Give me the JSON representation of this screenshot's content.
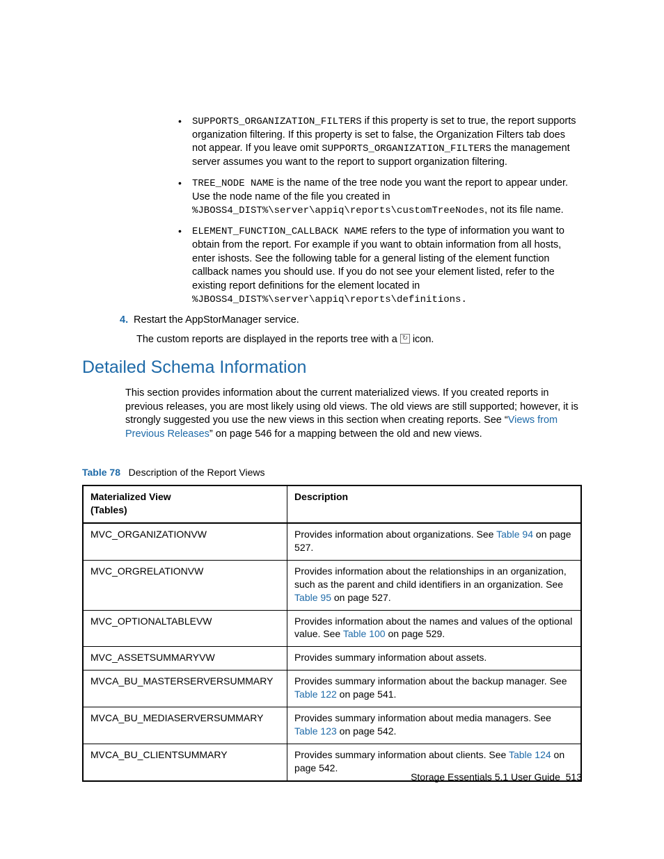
{
  "bullets": [
    {
      "runs": [
        {
          "t": "mono",
          "v": "SUPPORTS_ORGANIZATION_FILTERS"
        },
        {
          "t": "text",
          "v": " if this property is set to true, the report supports organization filtering. If this property is set to false, the Organization Filters tab does not appear. If you leave omit "
        },
        {
          "t": "mono",
          "v": "SUPPORTS_ORGANIZATION_FILTERS"
        },
        {
          "t": "text",
          "v": " the management server assumes you want to the report to support organization filtering."
        }
      ]
    },
    {
      "runs": [
        {
          "t": "mono",
          "v": "TREE_NODE NAME"
        },
        {
          "t": "text",
          "v": " is the name of the tree node you want the report to appear under. Use the node name of the file you created in "
        },
        {
          "t": "monoblock",
          "v": "%JBOSS4_DIST%\\server\\appiq\\reports\\customTreeNodes"
        },
        {
          "t": "text",
          "v": ", not its file name."
        }
      ]
    },
    {
      "runs": [
        {
          "t": "mono",
          "v": "ELEMENT_FUNCTION_CALLBACK NAME"
        },
        {
          "t": "text",
          "v": " refers to the type of information you want to obtain from the report. For example if you want to obtain information from all hosts, enter ishosts. See the following table for a general listing of the element function callback names you should use. If you do not see your element listed, refer to the existing report definitions for the element located in "
        },
        {
          "t": "monoblock",
          "v": "%JBOSS4_DIST%\\server\\appiq\\reports\\definitions."
        }
      ]
    }
  ],
  "step4": {
    "num": "4.",
    "text": "Restart the AppStorManager service."
  },
  "afterStep": {
    "pre": "The custom reports are displayed in the reports tree with a ",
    "post": " icon."
  },
  "heading": "Detailed Schema Information",
  "intro": {
    "runs": [
      {
        "t": "text",
        "v": "This section provides information about the current materialized views. If you created reports in previous releases, you are most likely using old views. The old views are still supported; however, it is strongly suggested you use the new views in this section when creating reports. See “"
      },
      {
        "t": "link",
        "v": "Views from Previous Releases"
      },
      {
        "t": "text",
        "v": "” on page 546 for a mapping between the old and new views."
      }
    ]
  },
  "tableCaption": {
    "label": "Table 78",
    "title": "Description of the Report Views"
  },
  "tableHeaders": [
    "Materialized View (Tables)",
    "Description"
  ],
  "rows": [
    {
      "view": "MVC_ORGANIZATIONVW",
      "desc": [
        {
          "t": "text",
          "v": "Provides information about organizations. See "
        },
        {
          "t": "link",
          "v": "Table 94"
        },
        {
          "t": "text",
          "v": " on page 527."
        }
      ]
    },
    {
      "view": "MVC_ORGRELATIONVW",
      "desc": [
        {
          "t": "text",
          "v": "Provides information about the relationships in an organization, such as the parent and child identifiers in an organization. See "
        },
        {
          "t": "link",
          "v": "Table 95"
        },
        {
          "t": "text",
          "v": " on page 527."
        }
      ]
    },
    {
      "view": "MVC_OPTIONALTABLEVW",
      "desc": [
        {
          "t": "text",
          "v": "Provides information about the names and values of the optional value. See "
        },
        {
          "t": "link",
          "v": "Table 100"
        },
        {
          "t": "text",
          "v": " on page 529."
        }
      ]
    },
    {
      "view": "MVC_ASSETSUMMARYVW",
      "desc": [
        {
          "t": "text",
          "v": "Provides summary information about assets."
        }
      ]
    },
    {
      "view": "MVCA_BU_MASTERSERVERSUMMARY",
      "desc": [
        {
          "t": "text",
          "v": "Provides summary information about the backup manager. See "
        },
        {
          "t": "link",
          "v": "Table 122"
        },
        {
          "t": "text",
          "v": " on page 541."
        }
      ]
    },
    {
      "view": "MVCA_BU_MEDIASERVERSUMMARY",
      "desc": [
        {
          "t": "text",
          "v": "Provides summary information about media managers. See "
        },
        {
          "t": "link",
          "v": "Table 123"
        },
        {
          "t": "text",
          "v": " on page 542."
        }
      ]
    },
    {
      "view": "MVCA_BU_CLIENTSUMMARY",
      "desc": [
        {
          "t": "text",
          "v": "Provides summary information about clients. See "
        },
        {
          "t": "link",
          "v": "Table 124"
        },
        {
          "t": "text",
          "v": " on page 542."
        }
      ]
    }
  ],
  "footer": {
    "title": "Storage Essentials 5.1 User Guide",
    "page": "513"
  }
}
